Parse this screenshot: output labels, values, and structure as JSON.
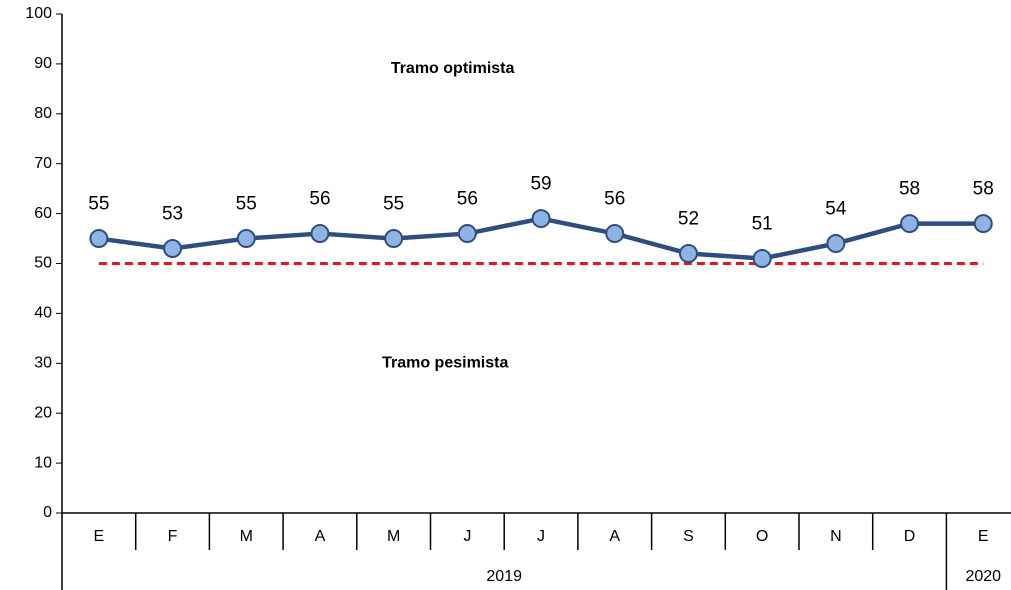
{
  "chart_data": {
    "type": "line",
    "categories": [
      "E",
      "F",
      "M",
      "A",
      "M",
      "J",
      "J",
      "A",
      "S",
      "O",
      "N",
      "D",
      "E"
    ],
    "years": [
      "2019",
      "2019",
      "2019",
      "2019",
      "2019",
      "2019",
      "2019",
      "2019",
      "2019",
      "2019",
      "2019",
      "2019",
      "2020"
    ],
    "series": [
      {
        "color": "#2e4f7e",
        "marker_color": "#8fb4e3",
        "values": [
          55,
          53,
          55,
          56,
          55,
          56,
          59,
          56,
          52,
          51,
          54,
          58,
          58
        ]
      }
    ],
    "reference_line": {
      "value": 50,
      "color": "#e8141b",
      "style": "dashed"
    },
    "annotations": [
      {
        "text": "Tramo optimista",
        "x": 4.8,
        "y": 89
      },
      {
        "text": "Tramo pesimista",
        "x": 4.7,
        "y": 30
      }
    ],
    "ylim": [
      0,
      100
    ],
    "yticks": [
      0,
      10,
      20,
      30,
      40,
      50,
      60,
      70,
      80,
      90,
      100
    ],
    "grid": false
  }
}
